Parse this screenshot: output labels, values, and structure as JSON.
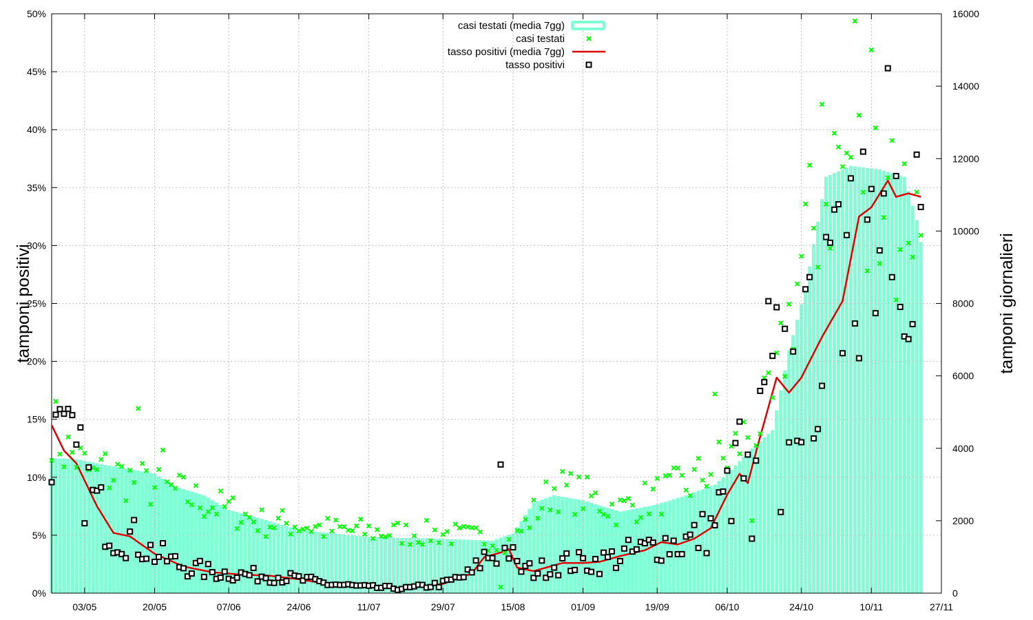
{
  "chart_data": {
    "type": "bar+line+scatter",
    "title": "",
    "ylabel": "tamponi positivi",
    "y2label": "tamponi giornalieri",
    "x_range": [
      "2020-04-25",
      "2020-11-27"
    ],
    "ylim": [
      0,
      50
    ],
    "y2lim": [
      0,
      16000
    ],
    "x_ticks": [
      {
        "date": "2020-05-03",
        "label": "03/05"
      },
      {
        "date": "2020-05-20",
        "label": "20/05"
      },
      {
        "date": "2020-06-07",
        "label": "07/06"
      },
      {
        "date": "2020-06-24",
        "label": "24/06"
      },
      {
        "date": "2020-07-11",
        "label": "11/07"
      },
      {
        "date": "2020-07-29",
        "label": "29/07"
      },
      {
        "date": "2020-08-15",
        "label": "15/08"
      },
      {
        "date": "2020-09-01",
        "label": "01/09"
      },
      {
        "date": "2020-09-19",
        "label": "19/09"
      },
      {
        "date": "2020-10-06",
        "label": "06/10"
      },
      {
        "date": "2020-10-24",
        "label": "24/10"
      },
      {
        "date": "2020-11-10",
        "label": "10/11"
      },
      {
        "date": "2020-11-27",
        "label": "27/11"
      }
    ],
    "y_ticks": [
      "0%",
      "5%",
      "10%",
      "15%",
      "20%",
      "25%",
      "30%",
      "35%",
      "40%",
      "45%",
      "50%"
    ],
    "y2_ticks": [
      "0",
      "2000",
      "4000",
      "6000",
      "8000",
      "10000",
      "12000",
      "14000",
      "16000"
    ],
    "grid": true,
    "legend_position": "top-center",
    "legend": [
      {
        "label": "casi testati (media 7gg)",
        "style": "bars",
        "color": "#7fffd4"
      },
      {
        "label": "casi testati",
        "style": "x-points",
        "color": "#00ff00"
      },
      {
        "label": "tasso positivi (media 7gg)",
        "style": "line",
        "color": "#e00000"
      },
      {
        "label": "tasso positivi",
        "style": "square-points",
        "color": "#000000"
      }
    ],
    "colors": {
      "bars": "#7fffd4",
      "tested_points": "#00ff00",
      "rate_line": "#e00000",
      "rate_points": "#000000",
      "grid": "#c0c0c0"
    },
    "dates_start": "2020-04-25",
    "dates_end": "2020-11-30",
    "tested_avg_anchors": [
      [
        "2020-04-25",
        3730
      ],
      [
        "2020-05-01",
        3700
      ],
      [
        "2020-05-08",
        3540
      ],
      [
        "2020-05-15",
        3400
      ],
      [
        "2020-05-20",
        3300
      ],
      [
        "2020-05-25",
        2940
      ],
      [
        "2020-06-01",
        2700
      ],
      [
        "2020-06-07",
        2300
      ],
      [
        "2020-06-15",
        2050
      ],
      [
        "2020-06-24",
        1750
      ],
      [
        "2020-07-11",
        1550
      ],
      [
        "2020-07-29",
        1500
      ],
      [
        "2020-08-10",
        1450
      ],
      [
        "2020-08-15",
        1650
      ],
      [
        "2020-08-20",
        2500
      ],
      [
        "2020-08-25",
        2700
      ],
      [
        "2020-09-01",
        2560
      ],
      [
        "2020-09-10",
        2250
      ],
      [
        "2020-09-19",
        2450
      ],
      [
        "2020-09-26",
        2700
      ],
      [
        "2020-10-03",
        3000
      ],
      [
        "2020-10-06",
        3300
      ],
      [
        "2020-10-12",
        4000
      ],
      [
        "2020-10-17",
        4500
      ],
      [
        "2020-10-21",
        6700
      ],
      [
        "2020-10-25",
        8400
      ],
      [
        "2020-10-30",
        11500
      ],
      [
        "2020-11-05",
        11800
      ],
      [
        "2020-11-12",
        11700
      ],
      [
        "2020-11-18",
        11500
      ],
      [
        "2020-11-21",
        10300
      ],
      [
        "2020-11-22",
        9700
      ]
    ],
    "rate_avg_anchors": [
      [
        "2020-04-25",
        14.5
      ],
      [
        "2020-04-28",
        12.3
      ],
      [
        "2020-05-01",
        11.2
      ],
      [
        "2020-05-06",
        7.5
      ],
      [
        "2020-05-10",
        5.2
      ],
      [
        "2020-05-14",
        4.9
      ],
      [
        "2020-05-20",
        3.4
      ],
      [
        "2020-05-27",
        2.3
      ],
      [
        "2020-06-03",
        1.8
      ],
      [
        "2020-06-10",
        1.6
      ],
      [
        "2020-06-17",
        1.5
      ],
      [
        "2020-06-24",
        1.2
      ],
      [
        "2020-07-01",
        0.8
      ],
      [
        "2020-07-11",
        0.5
      ],
      [
        "2020-07-20",
        0.4
      ],
      [
        "2020-07-29",
        0.8
      ],
      [
        "2020-08-05",
        1.7
      ],
      [
        "2020-08-08",
        3.1
      ],
      [
        "2020-08-12",
        3.5
      ],
      [
        "2020-08-14",
        3.8
      ],
      [
        "2020-08-16",
        2.2
      ],
      [
        "2020-08-20",
        1.9
      ],
      [
        "2020-08-27",
        2.6
      ],
      [
        "2020-09-01",
        2.6
      ],
      [
        "2020-09-05",
        2.7
      ],
      [
        "2020-09-10",
        3.2
      ],
      [
        "2020-09-16",
        3.7
      ],
      [
        "2020-09-20",
        4.4
      ],
      [
        "2020-09-24",
        4.2
      ],
      [
        "2020-09-28",
        4.7
      ],
      [
        "2020-10-02",
        5.6
      ],
      [
        "2020-10-06",
        8.5
      ],
      [
        "2020-10-09",
        10.3
      ],
      [
        "2020-10-11",
        9.5
      ],
      [
        "2020-10-14",
        13.5
      ],
      [
        "2020-10-18",
        18.6
      ],
      [
        "2020-10-21",
        17.3
      ],
      [
        "2020-10-24",
        18.6
      ],
      [
        "2020-10-29",
        22.1
      ],
      [
        "2020-11-03",
        25.2
      ],
      [
        "2020-11-07",
        32.5
      ],
      [
        "2020-11-10",
        33.3
      ],
      [
        "2020-11-14",
        35.6
      ],
      [
        "2020-11-16",
        34.2
      ],
      [
        "2020-11-19",
        34.5
      ],
      [
        "2020-11-22",
        34.2
      ]
    ],
    "tested_points_anchors": [
      [
        "2020-04-25",
        4700
      ],
      [
        "2020-04-28",
        4000
      ],
      [
        "2020-05-01",
        3750
      ],
      [
        "2020-05-05",
        3200
      ],
      [
        "2020-05-10",
        3300
      ],
      [
        "2020-05-15",
        3100
      ],
      [
        "2020-05-20",
        2900
      ],
      [
        "2020-05-25",
        2800
      ],
      [
        "2020-06-01",
        2500
      ],
      [
        "2020-06-07",
        2300
      ],
      [
        "2020-06-15",
        1950
      ],
      [
        "2020-06-24",
        1900
      ],
      [
        "2020-07-01",
        1750
      ],
      [
        "2020-07-11",
        1700
      ],
      [
        "2020-07-20",
        1650
      ],
      [
        "2020-07-29",
        1650
      ],
      [
        "2020-08-08",
        1500
      ],
      [
        "2020-08-15",
        1400
      ],
      [
        "2020-08-20",
        2200
      ],
      [
        "2020-08-25",
        2900
      ],
      [
        "2020-09-01",
        2700
      ],
      [
        "2020-09-10",
        2300
      ],
      [
        "2020-09-19",
        2700
      ],
      [
        "2020-09-26",
        2950
      ],
      [
        "2020-10-03",
        3500
      ],
      [
        "2020-10-06",
        3700
      ],
      [
        "2020-10-12",
        4600
      ],
      [
        "2020-10-17",
        5100
      ],
      [
        "2020-10-21",
        7500
      ],
      [
        "2020-10-25",
        9600
      ],
      [
        "2020-10-30",
        11000
      ],
      [
        "2020-11-05",
        12000
      ],
      [
        "2020-11-12",
        11500
      ],
      [
        "2020-11-18",
        10800
      ],
      [
        "2020-11-22",
        10200
      ]
    ],
    "tested_points_outliers": [
      [
        "2020-05-16",
        5100
      ],
      [
        "2020-10-03",
        5500
      ],
      [
        "2020-11-06",
        15800
      ],
      [
        "2020-11-10",
        15000
      ],
      [
        "2020-10-29",
        13500
      ],
      [
        "2020-11-01",
        12700
      ],
      [
        "2020-08-12",
        170
      ],
      [
        "2020-11-09",
        8900
      ],
      [
        "2020-11-16",
        8100
      ],
      [
        "2020-11-15",
        12500
      ],
      [
        "2020-05-08",
        3850
      ],
      [
        "2020-05-22",
        3950
      ],
      [
        "2020-10-12",
        2000
      ],
      [
        "2020-08-02",
        1800
      ]
    ],
    "rate_points_outliers": [
      [
        "2020-04-26",
        15.4
      ],
      [
        "2020-08-12",
        11.1
      ],
      [
        "2020-10-09",
        14.8
      ],
      [
        "2020-10-16",
        25.2
      ],
      [
        "2020-11-05",
        35.8
      ],
      [
        "2020-11-08",
        38.1
      ],
      [
        "2020-11-14",
        45.3
      ],
      [
        "2020-11-16",
        36.0
      ],
      [
        "2020-11-17",
        24.7
      ],
      [
        "2020-11-04",
        30.9
      ],
      [
        "2020-11-01",
        33.1
      ],
      [
        "2020-10-19",
        7.0
      ],
      [
        "2020-10-12",
        4.7
      ]
    ]
  }
}
